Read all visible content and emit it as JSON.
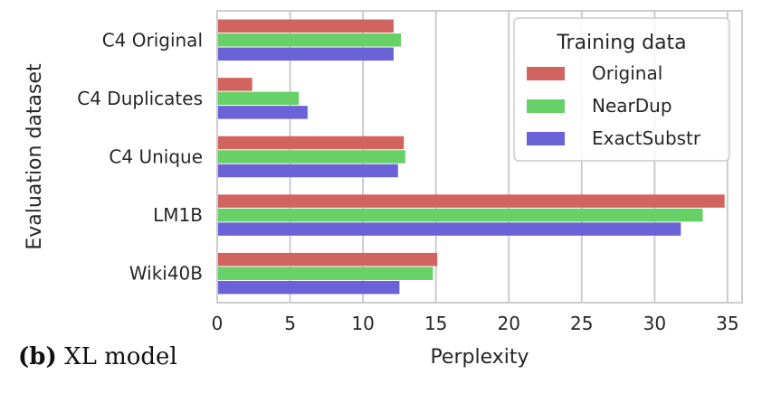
{
  "caption": {
    "prefix": "(b)",
    "text": "XL model"
  },
  "chart_data": {
    "type": "bar",
    "orientation": "horizontal",
    "categories": [
      "C4 Original",
      "C4 Duplicates",
      "C4 Unique",
      "LM1B",
      "Wiki40B"
    ],
    "series": [
      {
        "name": "Original",
        "color": "#d1645e",
        "values": [
          12.1,
          2.4,
          12.8,
          34.8,
          15.1
        ]
      },
      {
        "name": "NearDup",
        "color": "#67d067",
        "values": [
          12.6,
          5.6,
          12.9,
          33.3,
          14.8
        ]
      },
      {
        "name": "ExactSubstr",
        "color": "#6a62d6",
        "values": [
          12.1,
          6.2,
          12.4,
          31.8,
          12.5
        ]
      }
    ],
    "xlabel": "Perplexity",
    "ylabel": "Evaluation dataset",
    "xlim": [
      0,
      36
    ],
    "xticks": [
      0,
      5,
      10,
      15,
      20,
      25,
      30,
      35
    ],
    "grid": true,
    "legend": {
      "title": "Training data",
      "position": "top-right"
    }
  }
}
